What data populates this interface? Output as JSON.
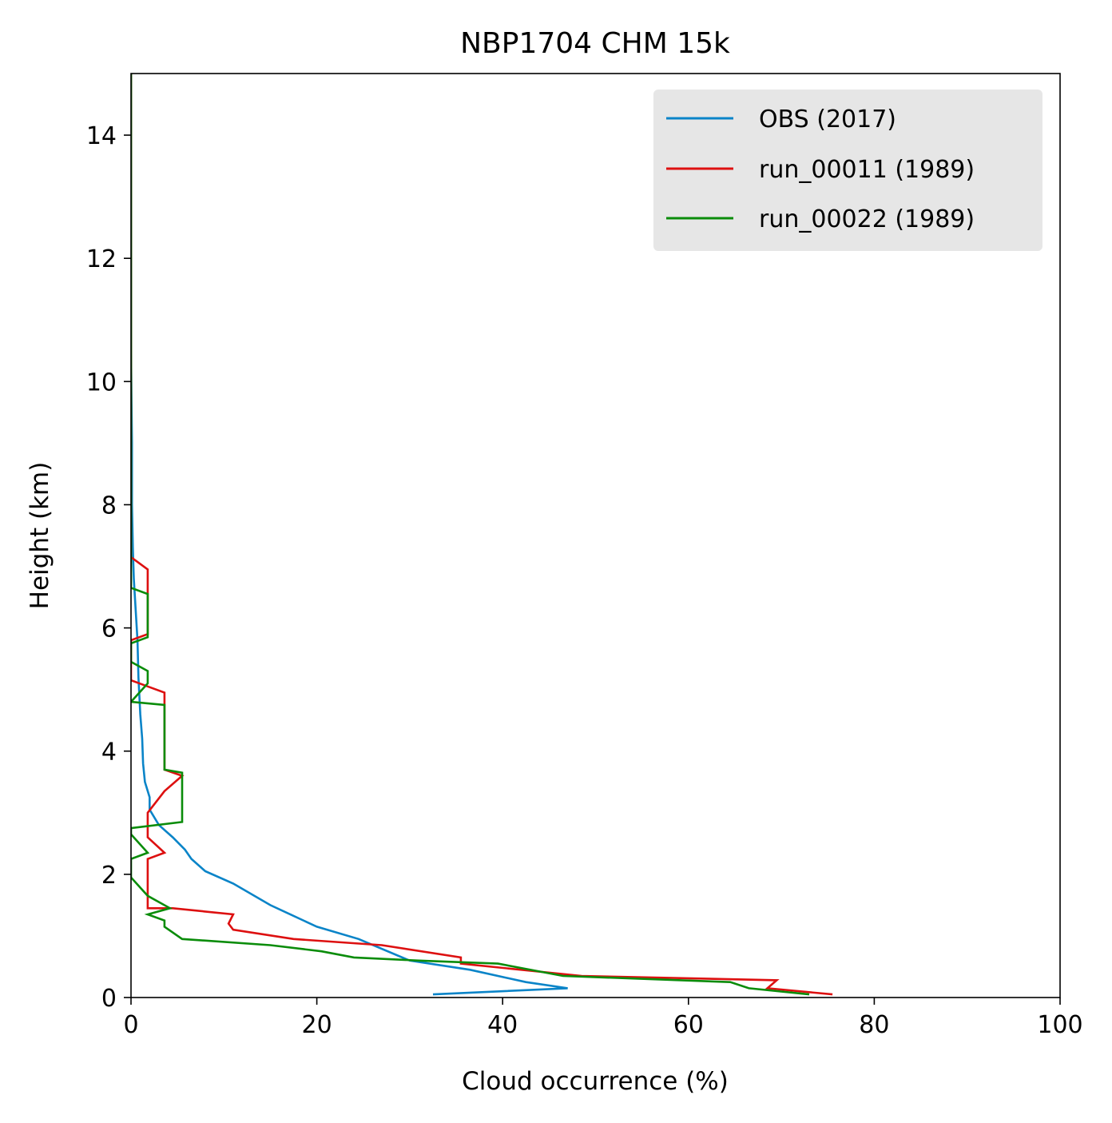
{
  "chart_data": {
    "type": "line",
    "title": "NBP1704 CHM 15k",
    "xlabel": "Cloud occurrence (%)",
    "ylabel": "Height (km)",
    "xlim": [
      0,
      100
    ],
    "ylim": [
      0,
      15
    ],
    "xticks": [
      "0",
      "20",
      "40",
      "60",
      "80",
      "100"
    ],
    "yticks": [
      "0",
      "2",
      "4",
      "6",
      "8",
      "10",
      "12",
      "14"
    ],
    "xtick_values": [
      0,
      20,
      40,
      60,
      80,
      100
    ],
    "ytick_values": [
      0,
      2,
      4,
      6,
      8,
      10,
      12,
      14
    ],
    "grid": false,
    "legend_position": "top-right",
    "series": [
      {
        "name": "OBS (2017)",
        "color": "#0a84c8",
        "points": [
          [
            32.5,
            0.05
          ],
          [
            47.0,
            0.15
          ],
          [
            42.5,
            0.25
          ],
          [
            36.5,
            0.45
          ],
          [
            30.0,
            0.6
          ],
          [
            24.5,
            0.95
          ],
          [
            20.0,
            1.15
          ],
          [
            15.0,
            1.5
          ],
          [
            11.0,
            1.85
          ],
          [
            8.0,
            2.05
          ],
          [
            6.5,
            2.25
          ],
          [
            5.8,
            2.4
          ],
          [
            4.5,
            2.6
          ],
          [
            3.0,
            2.8
          ],
          [
            2.0,
            3.05
          ],
          [
            2.0,
            3.25
          ],
          [
            1.5,
            3.5
          ],
          [
            1.3,
            3.8
          ],
          [
            1.2,
            4.2
          ],
          [
            1.0,
            4.6
          ],
          [
            0.8,
            5.2
          ],
          [
            0.7,
            5.8
          ],
          [
            0.5,
            6.3
          ],
          [
            0.3,
            6.8
          ],
          [
            0.2,
            7.3
          ],
          [
            0.1,
            8.0
          ],
          [
            0.1,
            9.0
          ],
          [
            0.05,
            9.7
          ],
          [
            0.0,
            10.5
          ],
          [
            0.0,
            15.0
          ]
        ]
      },
      {
        "name": "run_00011 (1989)",
        "color": "#dd1010",
        "points": [
          [
            75.5,
            0.05
          ],
          [
            68.5,
            0.15
          ],
          [
            69.5,
            0.28
          ],
          [
            48.5,
            0.35
          ],
          [
            35.5,
            0.55
          ],
          [
            35.5,
            0.65
          ],
          [
            27.0,
            0.85
          ],
          [
            17.5,
            0.95
          ],
          [
            11.0,
            1.1
          ],
          [
            10.5,
            1.2
          ],
          [
            11.0,
            1.35
          ],
          [
            4.5,
            1.45
          ],
          [
            1.8,
            1.45
          ],
          [
            1.8,
            1.65
          ],
          [
            1.8,
            2.25
          ],
          [
            3.6,
            2.35
          ],
          [
            1.8,
            2.6
          ],
          [
            1.8,
            3.0
          ],
          [
            3.6,
            3.35
          ],
          [
            5.5,
            3.6
          ],
          [
            3.6,
            3.7
          ],
          [
            3.6,
            4.0
          ],
          [
            3.6,
            4.95
          ],
          [
            1.8,
            5.05
          ],
          [
            0.0,
            5.15
          ],
          [
            0.0,
            5.8
          ],
          [
            1.8,
            5.9
          ],
          [
            1.8,
            6.95
          ],
          [
            0.0,
            7.15
          ],
          [
            0.0,
            15.0
          ]
        ]
      },
      {
        "name": "run_00022 (1989)",
        "color": "#0a8c0a",
        "points": [
          [
            73.0,
            0.05
          ],
          [
            66.5,
            0.15
          ],
          [
            64.5,
            0.25
          ],
          [
            46.5,
            0.35
          ],
          [
            39.5,
            0.55
          ],
          [
            31.0,
            0.6
          ],
          [
            24.0,
            0.65
          ],
          [
            20.5,
            0.75
          ],
          [
            15.0,
            0.85
          ],
          [
            5.5,
            0.95
          ],
          [
            3.6,
            1.15
          ],
          [
            3.6,
            1.25
          ],
          [
            1.8,
            1.35
          ],
          [
            4.2,
            1.45
          ],
          [
            1.8,
            1.65
          ],
          [
            0.0,
            1.95
          ],
          [
            0.0,
            2.25
          ],
          [
            1.8,
            2.35
          ],
          [
            0.0,
            2.65
          ],
          [
            0.0,
            2.75
          ],
          [
            5.5,
            2.85
          ],
          [
            5.5,
            3.65
          ],
          [
            3.6,
            3.7
          ],
          [
            3.6,
            4.75
          ],
          [
            0.0,
            4.8
          ],
          [
            1.8,
            5.1
          ],
          [
            1.8,
            5.3
          ],
          [
            0.0,
            5.45
          ],
          [
            0.0,
            5.75
          ],
          [
            1.8,
            5.85
          ],
          [
            1.8,
            6.55
          ],
          [
            0.0,
            6.65
          ],
          [
            0.0,
            15.0
          ]
        ]
      }
    ]
  }
}
